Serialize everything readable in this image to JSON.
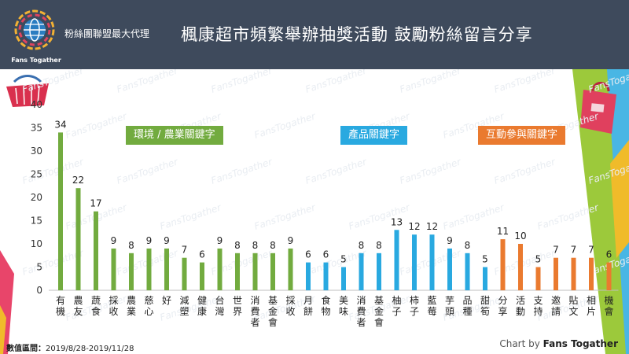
{
  "header": {
    "brand_name": "粉絲團聯盟最大代理",
    "logo_text": "Fans Togather",
    "title": "楓康超市頻繁舉辦抽獎活動 鼓勵粉絲留言分享"
  },
  "colors": {
    "header_bg": "#3e4a5c",
    "environment": "#72ab3f",
    "product": "#29a9e0",
    "interaction": "#ea7a2f"
  },
  "groups": [
    {
      "label": "環境 / 農業關鍵字",
      "color": "#72ab3f"
    },
    {
      "label": "產品關鍵字",
      "color": "#29a9e0"
    },
    {
      "label": "互動參與關鍵字",
      "color": "#ea7a2f"
    }
  ],
  "watermark": "FansTogather",
  "chart_data": {
    "type": "bar",
    "ylim": [
      0,
      40
    ],
    "yticks": [
      0,
      5,
      10,
      15,
      20,
      25,
      30,
      35,
      40
    ],
    "grid": false,
    "categories": [
      "有機",
      "農友",
      "蔬食",
      "採收",
      "農業",
      "慈心",
      "好",
      "減塑",
      "健康",
      "台灣",
      "世界",
      "消費者",
      "基金會",
      "採收",
      "月餅",
      "食物",
      "美味",
      "消費者",
      "基金會",
      "柚子",
      "柿子",
      "藍莓",
      "芋頭",
      "品種",
      "甜筍",
      "分享",
      "活動",
      "支持",
      "邀請",
      "貼文",
      "相片",
      "機會"
    ],
    "values": [
      34,
      22,
      17,
      9,
      8,
      9,
      9,
      7,
      6,
      9,
      8,
      8,
      8,
      9,
      6,
      6,
      5,
      8,
      8,
      13,
      12,
      12,
      9,
      8,
      5,
      11,
      10,
      5,
      7,
      7,
      7,
      6
    ],
    "group_index": [
      0,
      0,
      0,
      0,
      0,
      0,
      0,
      0,
      0,
      0,
      0,
      0,
      0,
      0,
      1,
      1,
      1,
      1,
      1,
      1,
      1,
      1,
      1,
      1,
      1,
      2,
      2,
      2,
      2,
      2,
      2,
      2
    ]
  },
  "footer": {
    "period_label": "數值區間：",
    "period_value": "2019/8/28-2019/11/28",
    "chart_by": "Chart by",
    "chart_by_brand": "Fans Togather"
  }
}
